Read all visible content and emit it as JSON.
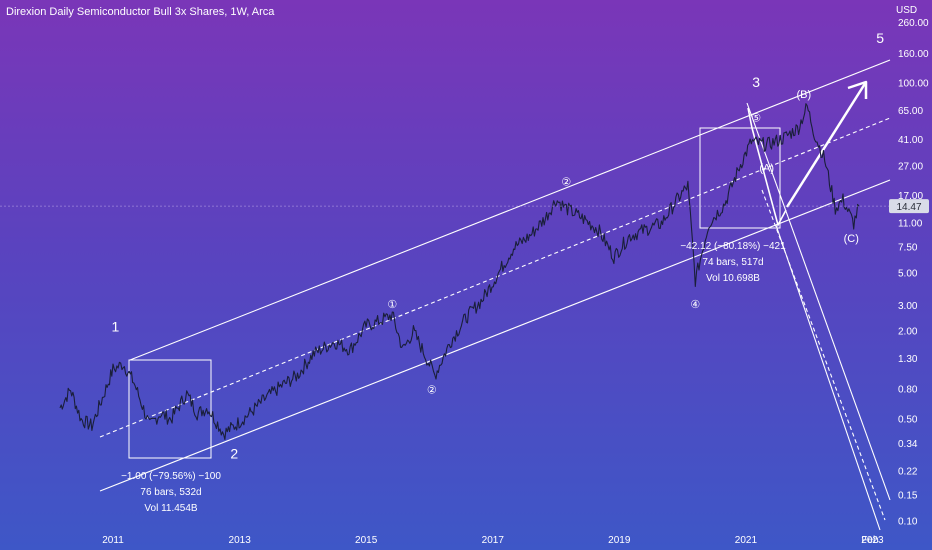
{
  "header": {
    "title": "Direxion Daily Semiconductor Bull 3x Shares, 1W, Arca",
    "currency": "USD"
  },
  "colors": {
    "line": "#ffffff",
    "price_tag_bg": "#d9dce8",
    "price_tag_text": "#2a2e39"
  },
  "chart_data": {
    "type": "line",
    "y_scale": "log",
    "ylim": [
      0.09,
      300
    ],
    "xlim": [
      "2010-03-01",
      "2023-04-01"
    ],
    "y_ticks": [
      "260.00",
      "160.00",
      "100.00",
      "65.00",
      "41.00",
      "27.00",
      "17.00",
      "11.00",
      "7.50",
      "5.00",
      "3.00",
      "2.00",
      "1.30",
      "0.80",
      "0.50",
      "0.34",
      "0.22",
      "0.15",
      "0.10"
    ],
    "x_ticks": [
      "2011",
      "2013",
      "2015",
      "2017",
      "2019",
      "2021",
      "2023",
      "Feb"
    ],
    "last_price": "14.47",
    "series": [
      {
        "x": [
          "2010-03-01",
          "2010-05-01",
          "2010-07-01",
          "2010-09-01",
          "2010-11-01",
          "2011-01-01",
          "2011-03-01",
          "2011-05-01",
          "2011-08-01",
          "2011-10-01",
          "2011-12-01",
          "2012-03-01",
          "2012-05-01",
          "2012-07-01",
          "2012-10-01",
          "2012-12-01",
          "2013-03-01",
          "2013-06-01",
          "2013-09-01",
          "2013-12-01",
          "2014-03-01",
          "2014-07-01",
          "2014-10-01",
          "2015-01-01",
          "2015-03-01",
          "2015-06-01",
          "2015-08-01",
          "2015-10-01",
          "2016-01-01",
          "2016-02-01",
          "2016-05-01",
          "2016-08-01",
          "2016-11-01",
          "2017-02-01",
          "2017-05-01",
          "2017-08-01",
          "2017-11-01",
          "2018-01-01",
          "2018-03-01",
          "2018-06-01",
          "2018-09-01",
          "2018-12-01",
          "2019-03-01",
          "2019-06-01",
          "2019-09-01",
          "2019-12-01",
          "2020-02-01",
          "2020-03-15",
          "2020-06-01",
          "2020-09-01",
          "2020-12-01",
          "2021-02-01",
          "2021-05-01",
          "2021-08-01",
          "2021-11-01",
          "2021-12-20",
          "2022-02-01",
          "2022-04-01",
          "2022-06-01",
          "2022-07-15",
          "2022-09-15",
          "2022-10-15"
        ],
        "y": [
          0.6,
          0.8,
          0.5,
          0.45,
          0.7,
          1.1,
          1.2,
          0.9,
          0.45,
          0.55,
          0.5,
          0.75,
          0.55,
          0.6,
          0.4,
          0.45,
          0.55,
          0.7,
          0.85,
          1.0,
          1.4,
          1.7,
          1.5,
          2.2,
          2.3,
          2.6,
          1.5,
          2.0,
          1.2,
          1.0,
          1.7,
          2.5,
          3.3,
          5.0,
          7.5,
          9.0,
          12.0,
          16.0,
          14.0,
          12.0,
          10.0,
          6.5,
          9.0,
          10.0,
          11.0,
          16.0,
          20.0,
          4.5,
          11.0,
          15.0,
          28.0,
          40.0,
          38.0,
          42.0,
          50.0,
          70.0,
          45.0,
          30.0,
          14.0,
          16.0,
          11.0,
          14.47
        ]
      }
    ],
    "wave_labels": [
      {
        "label": "1",
        "x": "2011-01-15",
        "y": 2.0
      },
      {
        "label": "2",
        "x": "2012-12-01",
        "y": 0.27
      },
      {
        "label": "3",
        "x": "2021-03-01",
        "y": 95
      },
      {
        "label": "5",
        "x": "2023-02-15",
        "y": 190
      }
    ],
    "sub_wave_labels": [
      {
        "label": "①",
        "x": "2015-06-01",
        "y": 2.9
      },
      {
        "label": "②",
        "x": "2016-01-15",
        "y": 0.75
      },
      {
        "label": "②",
        "x": "2018-03-01",
        "y": 20
      },
      {
        "label": "④",
        "x": "2020-03-15",
        "y": 2.9
      },
      {
        "label": "⑤",
        "x": "2021-03-01",
        "y": 55
      },
      {
        "label": "(A)",
        "x": "2021-05-01",
        "y": 25
      },
      {
        "label": "(B)",
        "x": "2021-12-01",
        "y": 80
      },
      {
        "label": "(C)",
        "x": "2022-09-01",
        "y": 8.2
      }
    ],
    "annotations": [
      {
        "lines": [
          "−1.00 (−79.56%) −100",
          "76 bars, 532d",
          "Vol 11.454B"
        ]
      },
      {
        "lines": [
          "−42.12 (−80.18%) −421",
          "74 bars, 517d",
          "Vol 10.698B"
        ]
      }
    ]
  }
}
